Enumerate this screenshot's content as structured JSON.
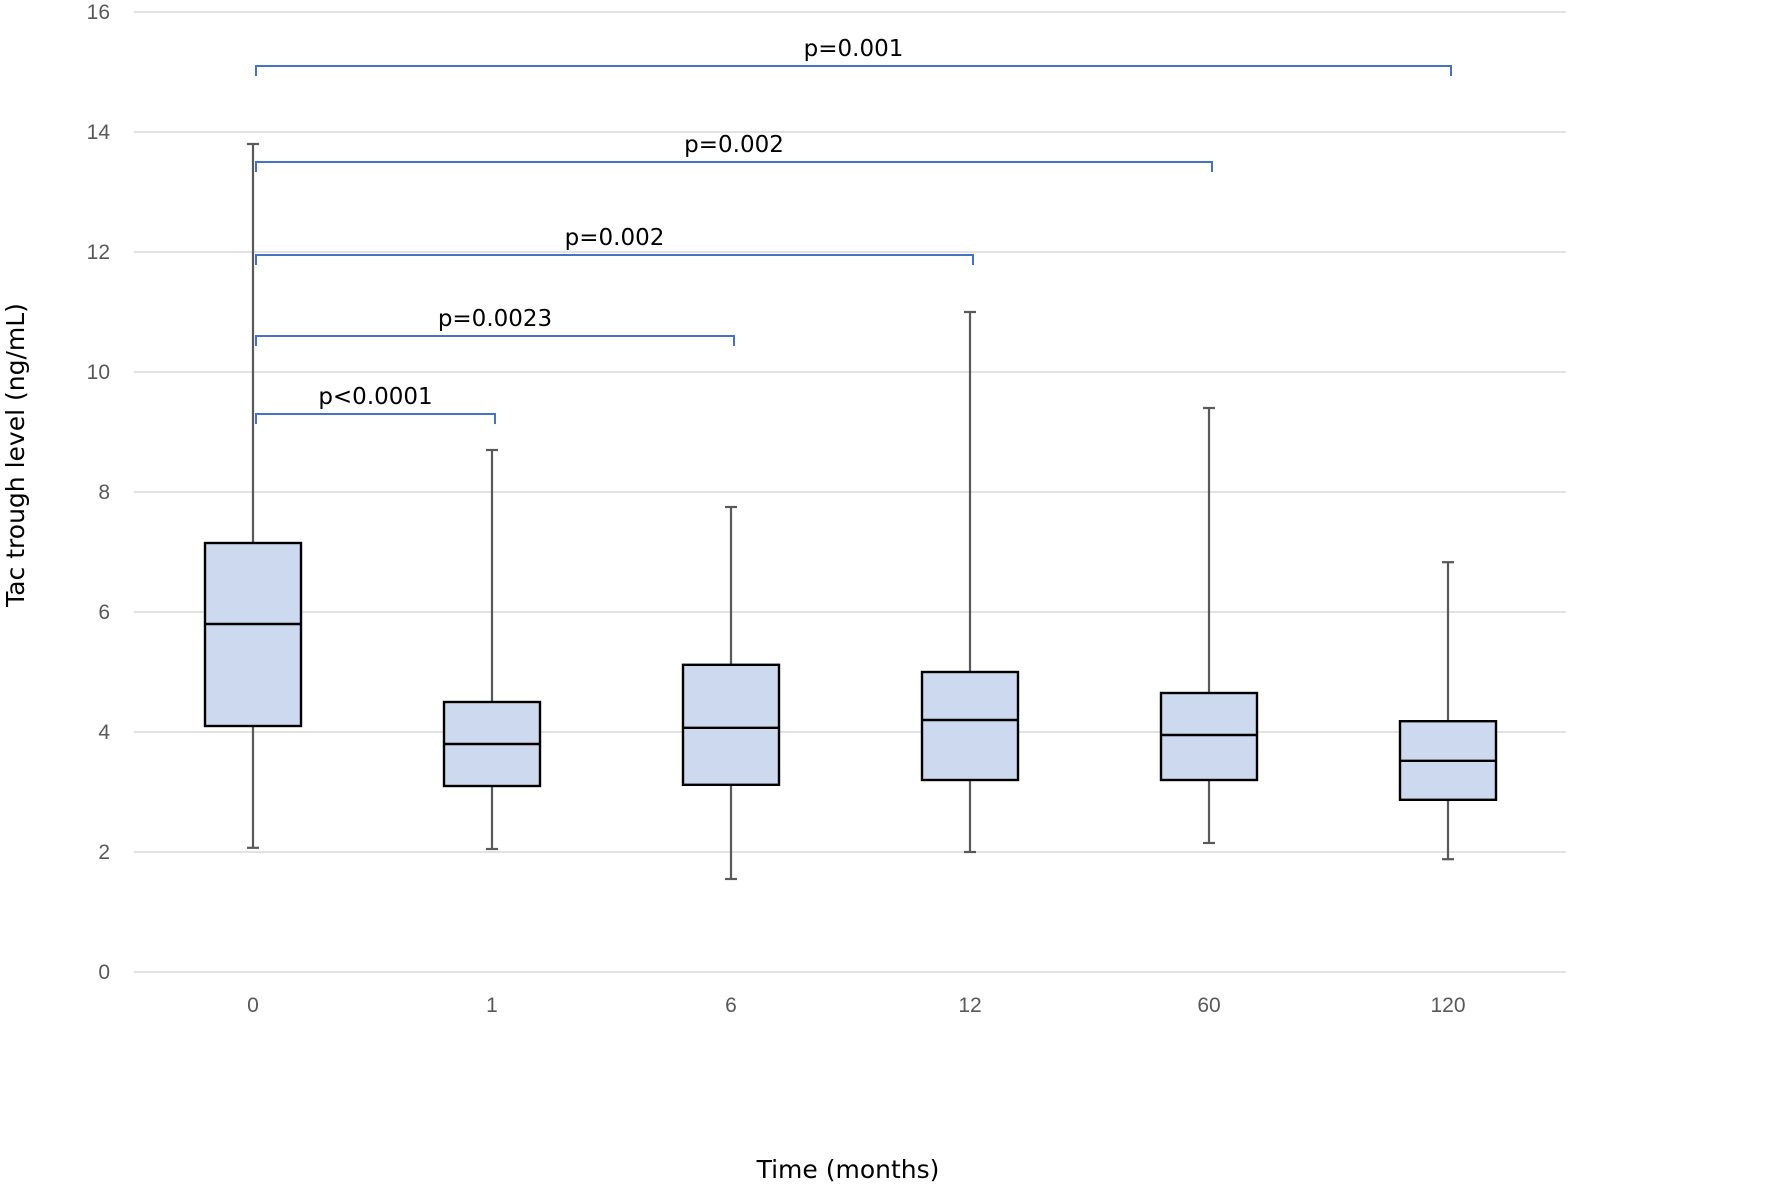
{
  "chart_data": {
    "type": "boxplot",
    "xlabel": "Time (months)",
    "ylabel": "Tac trough level (ng/mL)",
    "ylim": [
      0,
      16
    ],
    "yticks": [
      0,
      2,
      4,
      6,
      8,
      10,
      12,
      14,
      16
    ],
    "grid": true,
    "categories": [
      "0",
      "1",
      "6",
      "12",
      "60",
      "120"
    ],
    "boxes": [
      {
        "category": "0",
        "min": 2.07,
        "q1": 4.1,
        "median": 5.8,
        "q3": 7.15,
        "max": 13.8
      },
      {
        "category": "1",
        "min": 2.05,
        "q1": 3.1,
        "median": 3.8,
        "q3": 4.5,
        "max": 8.7
      },
      {
        "category": "6",
        "min": 1.55,
        "q1": 3.12,
        "median": 4.07,
        "q3": 5.12,
        "max": 7.75
      },
      {
        "category": "12",
        "min": 2.0,
        "q1": 3.2,
        "median": 4.2,
        "q3": 5.0,
        "max": 11.0
      },
      {
        "category": "60",
        "min": 2.15,
        "q1": 3.2,
        "median": 3.95,
        "q3": 4.65,
        "max": 9.4
      },
      {
        "category": "120",
        "min": 1.88,
        "q1": 2.87,
        "median": 3.52,
        "q3": 4.18,
        "max": 6.83
      }
    ],
    "annotations": [
      {
        "from": "0",
        "to": "1",
        "y": 9.3,
        "label": "p<0.0001"
      },
      {
        "from": "0",
        "to": "6",
        "y": 10.6,
        "label": "p=0.0023"
      },
      {
        "from": "0",
        "to": "12",
        "y": 11.95,
        "label": "p=0.002"
      },
      {
        "from": "0",
        "to": "60",
        "y": 13.5,
        "label": "p=0.002"
      },
      {
        "from": "0",
        "to": "120",
        "y": 15.1,
        "label": "p=0.001"
      }
    ],
    "colors": {
      "box_fill": "#cdd9ef",
      "bracket": "#4472c4",
      "grid": "#d9d9d9"
    }
  }
}
